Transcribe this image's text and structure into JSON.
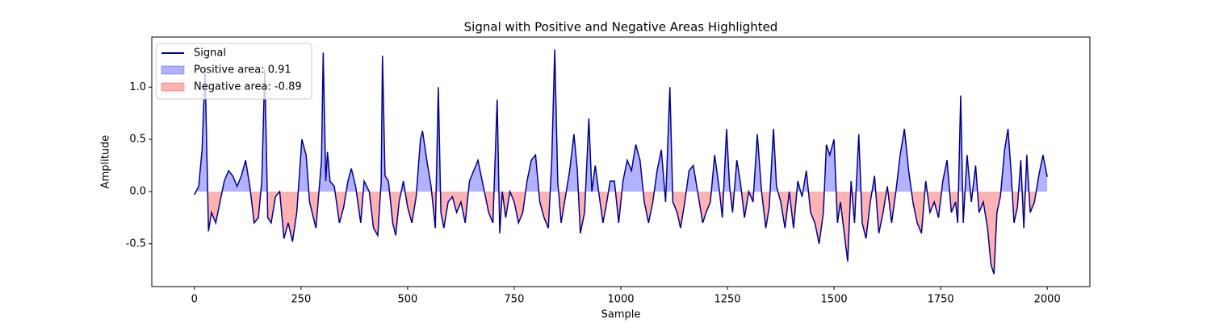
{
  "chart_data": {
    "type": "line",
    "title": "Signal with Positive and Negative Areas Highlighted",
    "x_label": "Sample",
    "y_label": "Amplitude",
    "x": [
      0,
      10,
      18,
      25,
      33,
      40,
      50,
      60,
      70,
      80,
      90,
      100,
      110,
      120,
      130,
      140,
      150,
      158,
      165,
      172,
      180,
      190,
      200,
      210,
      220,
      230,
      240,
      252,
      262,
      270,
      285,
      298,
      302,
      308,
      312,
      318,
      328,
      340,
      350,
      360,
      368,
      378,
      390,
      398,
      410,
      420,
      430,
      438,
      441,
      447,
      455,
      465,
      472,
      480,
      490,
      500,
      510,
      520,
      530,
      535,
      545,
      555,
      565,
      572,
      578,
      585,
      595,
      605,
      615,
      625,
      635,
      645,
      655,
      665,
      675,
      690,
      700,
      710,
      716,
      722,
      730,
      740,
      750,
      760,
      770,
      780,
      790,
      800,
      810,
      820,
      830,
      838,
      845,
      852,
      860,
      870,
      880,
      890,
      898,
      905,
      915,
      925,
      932,
      940,
      948,
      958,
      965,
      975,
      985,
      995,
      1005,
      1015,
      1025,
      1035,
      1045,
      1055,
      1065,
      1075,
      1085,
      1095,
      1105,
      1115,
      1122,
      1132,
      1140,
      1150,
      1160,
      1170,
      1180,
      1192,
      1200,
      1210,
      1220,
      1230,
      1238,
      1248,
      1255,
      1262,
      1272,
      1280,
      1290,
      1300,
      1310,
      1320,
      1330,
      1340,
      1348,
      1358,
      1365,
      1375,
      1385,
      1395,
      1405,
      1415,
      1425,
      1435,
      1445,
      1455,
      1465,
      1475,
      1482,
      1490,
      1500,
      1508,
      1515,
      1532,
      1540,
      1548,
      1558,
      1566,
      1575,
      1585,
      1595,
      1605,
      1615,
      1625,
      1635,
      1645,
      1655,
      1665,
      1675,
      1685,
      1695,
      1705,
      1715,
      1725,
      1735,
      1745,
      1755,
      1765,
      1775,
      1785,
      1790,
      1797,
      1803,
      1812,
      1822,
      1832,
      1840,
      1850,
      1860,
      1868,
      1875,
      1882,
      1890,
      1900,
      1908,
      1915,
      1922,
      1930,
      1938,
      1945,
      1952,
      1960,
      1970,
      1980,
      1990,
      2000
    ],
    "series": [
      {
        "name": "Signal",
        "color": "#00008b",
        "values": [
          -0.03,
          0.05,
          0.4,
          1.18,
          -0.38,
          -0.2,
          -0.3,
          -0.1,
          0.1,
          0.2,
          0.15,
          0.05,
          0.15,
          0.3,
          0.05,
          -0.3,
          -0.25,
          0.1,
          1.17,
          -0.25,
          -0.3,
          -0.05,
          0.0,
          -0.45,
          -0.3,
          -0.48,
          -0.2,
          0.5,
          0.35,
          -0.1,
          -0.35,
          0.3,
          1.33,
          0.1,
          0.38,
          0.1,
          0.05,
          -0.3,
          -0.15,
          0.1,
          0.22,
          0.05,
          -0.3,
          0.1,
          0.0,
          -0.35,
          -0.42,
          0.1,
          1.3,
          0.15,
          0.1,
          -0.3,
          -0.42,
          -0.1,
          0.1,
          -0.15,
          -0.3,
          -0.05,
          0.5,
          0.58,
          0.3,
          0.05,
          -0.35,
          1.0,
          -0.2,
          -0.35,
          -0.1,
          -0.05,
          -0.2,
          -0.1,
          -0.3,
          0.1,
          0.2,
          0.3,
          0.1,
          -0.2,
          -0.3,
          0.88,
          -0.4,
          0.0,
          -0.25,
          0.0,
          -0.1,
          -0.3,
          -0.2,
          0.1,
          0.3,
          0.35,
          -0.1,
          -0.25,
          -0.35,
          0.3,
          1.36,
          0.1,
          -0.3,
          -0.05,
          0.2,
          0.55,
          0.2,
          -0.4,
          -0.2,
          0.7,
          0.0,
          0.25,
          0.0,
          -0.3,
          -0.15,
          0.1,
          0.1,
          -0.3,
          0.1,
          0.3,
          0.2,
          0.45,
          0.3,
          -0.1,
          -0.3,
          -0.1,
          0.2,
          0.4,
          -0.1,
          1.0,
          -0.1,
          -0.2,
          -0.35,
          -0.1,
          0.2,
          0.25,
          0.0,
          -0.3,
          -0.2,
          -0.1,
          0.35,
          0.05,
          -0.25,
          0.6,
          0.05,
          -0.2,
          0.3,
          0.1,
          -0.25,
          0.0,
          -0.1,
          0.55,
          0.0,
          -0.35,
          -0.15,
          0.6,
          0.05,
          -0.1,
          -0.35,
          0.0,
          -0.35,
          0.1,
          -0.05,
          0.2,
          -0.2,
          -0.3,
          -0.5,
          -0.2,
          0.45,
          0.35,
          0.5,
          -0.3,
          -0.1,
          -0.67,
          0.1,
          -0.3,
          0.55,
          -0.3,
          -0.45,
          -0.1,
          0.15,
          -0.4,
          -0.2,
          0.05,
          -0.3,
          0.0,
          0.35,
          0.6,
          0.2,
          -0.1,
          -0.3,
          -0.4,
          0.1,
          -0.2,
          -0.1,
          -0.25,
          0.1,
          0.3,
          -0.2,
          -0.1,
          -0.3,
          0.92,
          -0.3,
          0.35,
          -0.1,
          0.25,
          -0.2,
          -0.1,
          -0.35,
          -0.7,
          -0.79,
          -0.2,
          -0.05,
          0.4,
          0.6,
          0.2,
          -0.3,
          -0.15,
          0.3,
          -0.35,
          0.35,
          -0.2,
          -0.1,
          0.15,
          0.35,
          0.14
        ]
      }
    ],
    "fills": [
      {
        "name": "Positive area: 0.91",
        "color": "#0000ff",
        "where": "positive"
      },
      {
        "name": "Negative area: -0.89",
        "color": "#ff0000",
        "where": "negative"
      }
    ],
    "xlim": [
      -100,
      2100
    ],
    "xticks": [
      0,
      250,
      500,
      750,
      1000,
      1250,
      1500,
      1750,
      2000
    ],
    "ylim": [
      -0.91,
      1.48
    ],
    "yticks": [
      -0.5,
      {
        "value": 0,
        "label": "0.0"
      },
      0.5,
      {
        "value": 1,
        "label": "1.0"
      }
    ],
    "legend": "upper left"
  }
}
